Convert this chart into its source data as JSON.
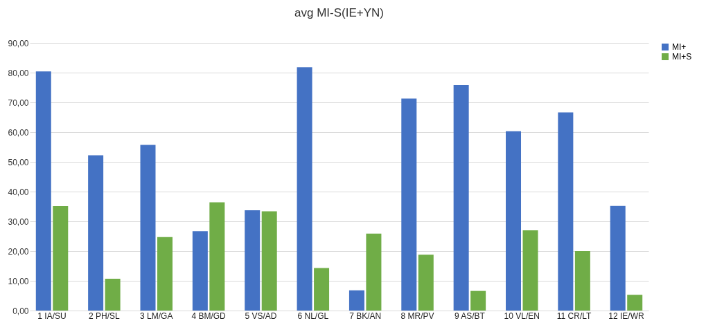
{
  "chart_data": {
    "type": "bar",
    "title": "avg MI-S(IE+YN)",
    "categories": [
      "1 IA/SU",
      "2 PH/SL",
      "3 LM/GA",
      "4 BM/GD",
      "5 VS/AD",
      "6 NL/GL",
      "7 BK/AN",
      "8 MR/PV",
      "9 AS/BT",
      "10 VL/EN",
      "11 CR/LT",
      "12 IE/WR"
    ],
    "series": [
      {
        "name": "MI+",
        "color": "#4472c4",
        "values": [
          80.4,
          52.2,
          55.7,
          26.7,
          33.7,
          81.8,
          6.8,
          71.3,
          75.8,
          60.3,
          66.6,
          35.2
        ]
      },
      {
        "name": "MI+S",
        "color": "#70ad47",
        "values": [
          35.1,
          10.7,
          24.7,
          36.4,
          33.4,
          14.3,
          25.9,
          18.8,
          6.6,
          27.0,
          20.0,
          5.3
        ]
      }
    ],
    "ylim": [
      0,
      90
    ],
    "yticks": [
      {
        "value": 0,
        "label": "0,00"
      },
      {
        "value": 10,
        "label": "10,00"
      },
      {
        "value": 20,
        "label": "20,00"
      },
      {
        "value": 30,
        "label": "30,00"
      },
      {
        "value": 40,
        "label": "40,00"
      },
      {
        "value": 50,
        "label": "50,00"
      },
      {
        "value": 60,
        "label": "60,00"
      },
      {
        "value": 70,
        "label": "70,00"
      },
      {
        "value": 80,
        "label": "80,00"
      },
      {
        "value": 90,
        "label": "90,00"
      }
    ],
    "grid": "y",
    "legend": "right"
  }
}
